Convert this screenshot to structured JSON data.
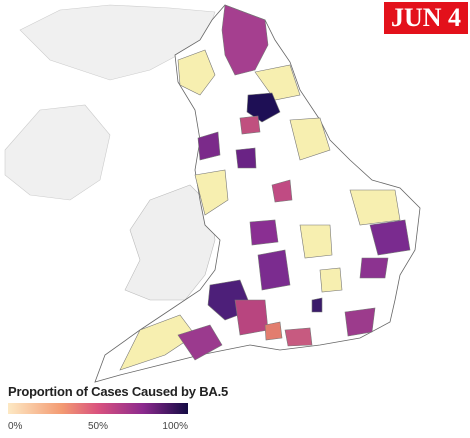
{
  "badge": "JUN 4",
  "legend": {
    "title": "Proportion of Cases Caused by BA.5",
    "ticks": [
      {
        "value": 0,
        "label": "0%"
      },
      {
        "value": 50,
        "label": "50%"
      },
      {
        "value": 100,
        "label": "100%"
      }
    ]
  }
}
